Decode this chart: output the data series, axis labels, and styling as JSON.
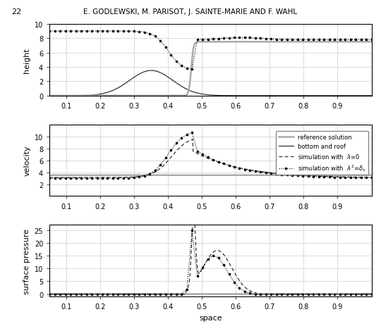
{
  "title": "E. GODLEWSKI, M. PARISOT, J. SAINTE-MARIE AND F. WAHL",
  "page_number": "22",
  "xlabel": "space",
  "ylabels": [
    "height",
    "velocity",
    "surface pressure"
  ],
  "xlim": [
    0.05,
    1.0
  ],
  "xticks": [
    0.1,
    0.2,
    0.3,
    0.4,
    0.5,
    0.6,
    0.7,
    0.8,
    0.9
  ],
  "legend_entries": [
    "reference solution",
    "bottom and roof",
    "simulation with  $\\lambda$=0",
    "simulation with  $\\lambda^2$=$\\delta_x$"
  ],
  "col_ref": "#aaaaaa",
  "col_bottom": "#333333",
  "col_sim0": "#333333",
  "col_sim2": "#000000"
}
